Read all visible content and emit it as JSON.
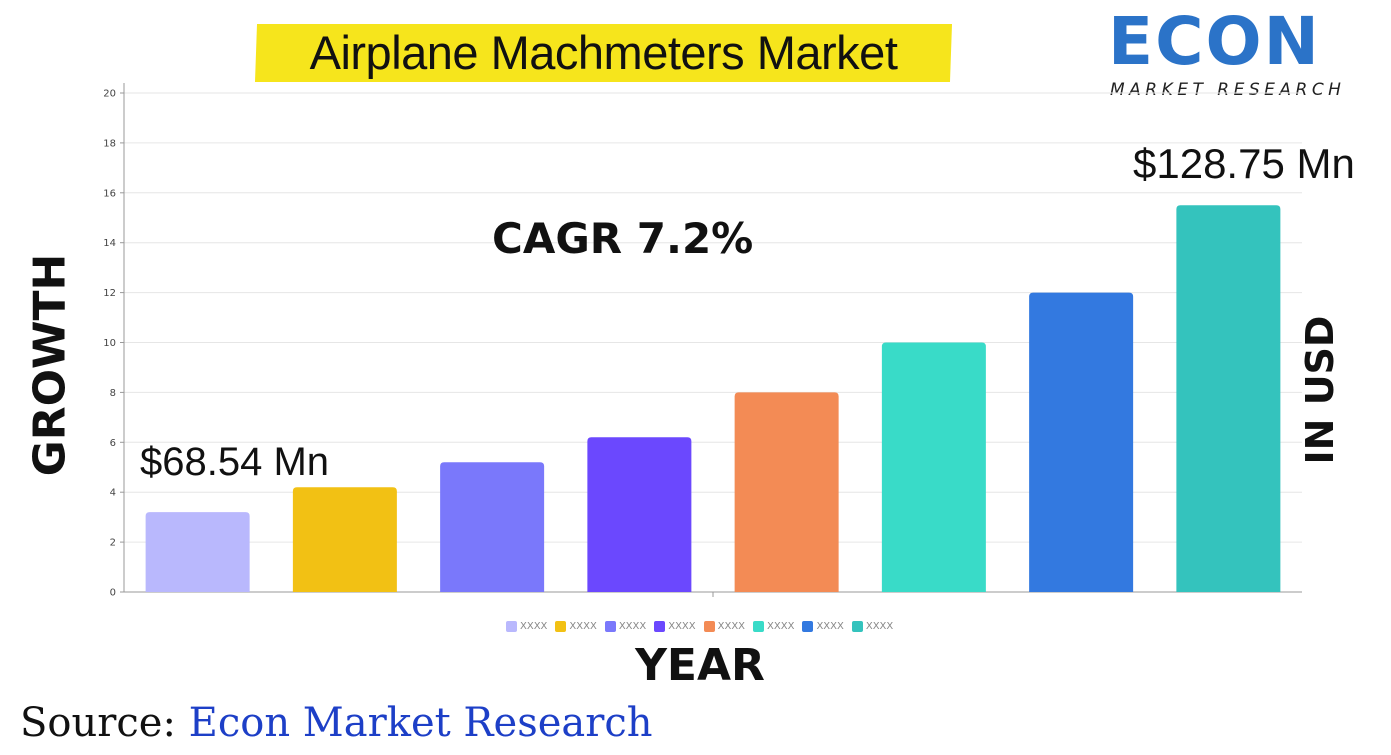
{
  "title": "Airplane Machmeters Market",
  "logo": {
    "main": "ECON",
    "sub": "MARKET RESEARCH"
  },
  "y_axis_label": "GROWTH",
  "y_axis_label_right": "IN USD",
  "x_axis_label": "YEAR",
  "cagr": "CAGR 7.2%",
  "annotation_start": "$68.54 Mn",
  "annotation_end": "$128.75 Mn",
  "source": {
    "prefix": "Source: ",
    "name": "Econ Market Research"
  },
  "chart_data": {
    "type": "bar",
    "title": "Airplane Machmeters Market",
    "xlabel": "YEAR",
    "ylabel": "GROWTH",
    "ylim": [
      0,
      20
    ],
    "yticks": [
      0,
      2,
      4,
      6,
      8,
      10,
      12,
      14,
      16,
      18,
      20
    ],
    "grid": true,
    "legend_position": "bottom",
    "categories": [
      "XXXX",
      "XXXX",
      "XXXX",
      "XXXX",
      "XXXX",
      "XXXX",
      "XXXX",
      "XXXX"
    ],
    "values": [
      3.2,
      4.2,
      5.2,
      6.2,
      8.0,
      10.0,
      12.0,
      15.5
    ],
    "colors": [
      "#b9b8fd",
      "#f2c114",
      "#7a78fb",
      "#6b48fe",
      "#f38b55",
      "#39dbc8",
      "#3379e0",
      "#34c3bd"
    ]
  }
}
